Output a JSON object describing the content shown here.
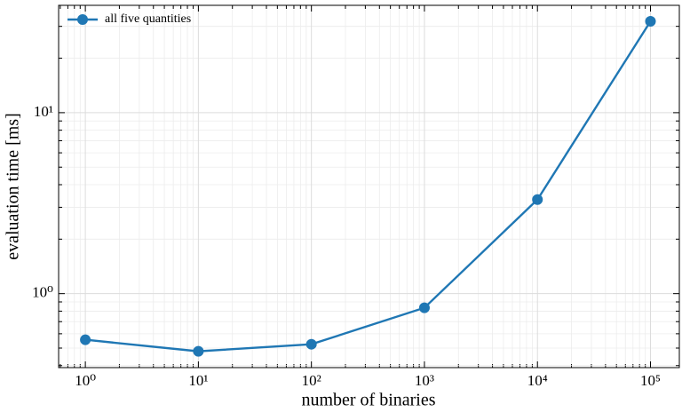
{
  "chart_data": {
    "type": "line",
    "xlabel": "number of binaries",
    "ylabel": "evaluation time [ms]",
    "x": [
      1,
      10,
      100,
      1000,
      10000,
      100000
    ],
    "series": [
      {
        "name": "all five quantities",
        "color": "#1f77b4",
        "values": [
          0.556,
          0.48,
          0.525,
          0.835,
          3.31,
          32
        ]
      }
    ],
    "xscale": "log",
    "yscale": "log",
    "xlim": [
      0.58,
      180000
    ],
    "ylim": [
      0.39,
      39.2
    ],
    "xticks": [
      {
        "value": 1,
        "label": "10⁰"
      },
      {
        "value": 10,
        "label": "10¹"
      },
      {
        "value": 100,
        "label": "10²"
      },
      {
        "value": 1000,
        "label": "10³"
      },
      {
        "value": 10000,
        "label": "10⁴"
      },
      {
        "value": 100000,
        "label": "10⁵"
      }
    ],
    "yticks": [
      {
        "value": 1,
        "label": "10⁰"
      },
      {
        "value": 10,
        "label": "10¹"
      }
    ],
    "xminorticks": [
      0.6,
      0.7,
      0.8,
      0.9,
      2,
      3,
      4,
      5,
      6,
      7,
      8,
      9,
      20,
      30,
      40,
      50,
      60,
      70,
      80,
      90,
      200,
      300,
      400,
      500,
      600,
      700,
      800,
      900,
      2000,
      3000,
      4000,
      5000,
      6000,
      7000,
      8000,
      9000,
      20000,
      30000,
      40000,
      50000,
      60000,
      70000,
      80000,
      90000
    ],
    "yminorticks": [
      0.4,
      0.5,
      0.6,
      0.7,
      0.8,
      0.9,
      2,
      3,
      4,
      5,
      6,
      7,
      8,
      9,
      20,
      30
    ],
    "grid": true,
    "legend": "upper left"
  }
}
